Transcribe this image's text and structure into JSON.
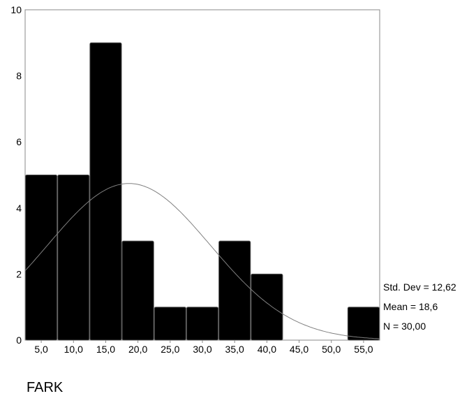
{
  "chart_data": {
    "type": "bar",
    "subtype": "histogram",
    "xlabel": "FARK",
    "categories": [
      "5,0",
      "10,0",
      "15,0",
      "20,0",
      "25,0",
      "30,0",
      "35,0",
      "40,0",
      "45,0",
      "50,0",
      "55,0"
    ],
    "bin_centers": [
      5,
      10,
      15,
      20,
      25,
      30,
      35,
      40,
      45,
      50,
      55
    ],
    "values": [
      5,
      5,
      9,
      3,
      1,
      1,
      3,
      2,
      0,
      0,
      1
    ],
    "ylim": [
      0,
      10
    ],
    "yticks": [
      "0",
      "2",
      "4",
      "6",
      "8",
      "10"
    ],
    "normal_curve": {
      "mean": 18.6,
      "std_dev": 12.62,
      "n": 30
    },
    "stats": {
      "std_dev": "Std. Dev = 12,62",
      "mean": "Mean = 18,6",
      "n": "N = 30,00"
    },
    "grid": false,
    "bar_color": "#000000",
    "curve_color": "#808080"
  }
}
